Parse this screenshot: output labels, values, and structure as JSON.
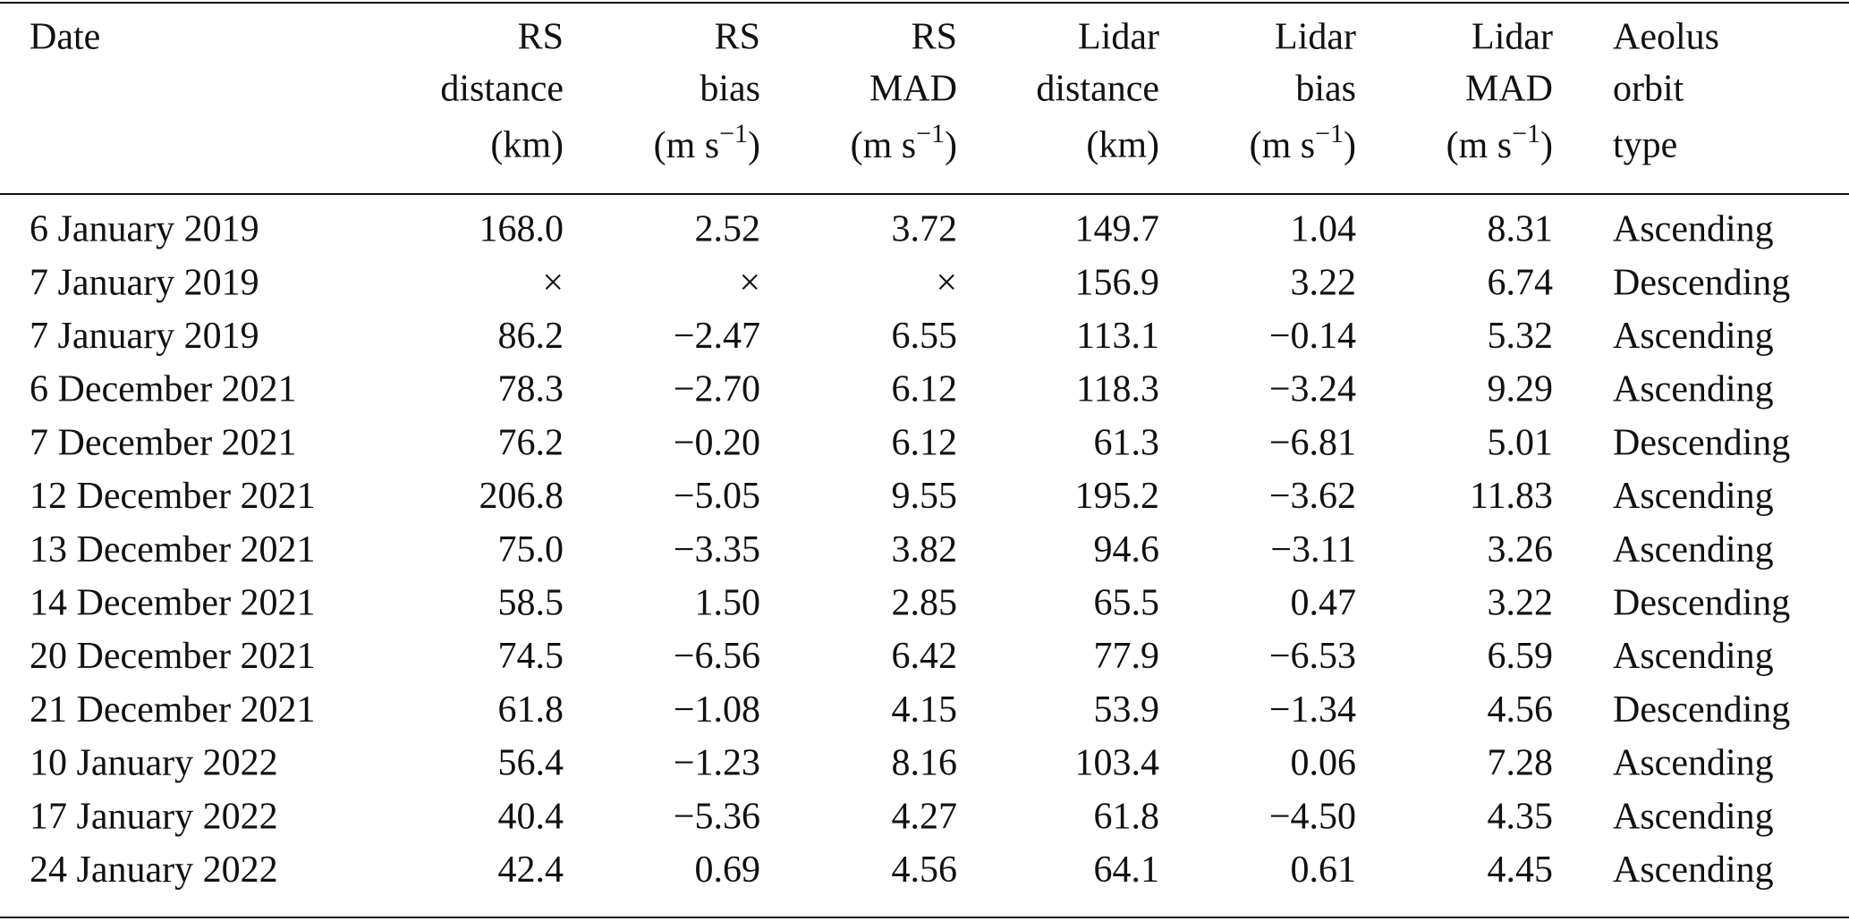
{
  "table": {
    "header": [
      {
        "lines": [
          "Date"
        ]
      },
      {
        "lines": [
          "RS",
          "distance",
          "(km)"
        ]
      },
      {
        "lines": [
          "RS",
          "bias",
          {
            "text": "(m s",
            "sup": "−1",
            "after": ")"
          }
        ]
      },
      {
        "lines": [
          "RS",
          "MAD",
          {
            "text": "(m s",
            "sup": "−1",
            "after": ")"
          }
        ]
      },
      {
        "lines": [
          "Lidar",
          "distance",
          "(km)"
        ]
      },
      {
        "lines": [
          "Lidar",
          "bias",
          {
            "text": "(m s",
            "sup": "−1",
            "after": ")"
          }
        ]
      },
      {
        "lines": [
          "Lidar",
          "MAD",
          {
            "text": "(m s",
            "sup": "−1",
            "after": ")"
          }
        ]
      },
      {
        "lines": [
          "Aeolus",
          "orbit",
          "type"
        ]
      }
    ],
    "rows": [
      [
        "6 January 2019",
        "168.0",
        "2.52",
        "3.72",
        "149.7",
        "1.04",
        "8.31",
        "Ascending"
      ],
      [
        "7 January 2019",
        "×",
        "×",
        "×",
        "156.9",
        "3.22",
        "6.74",
        "Descending"
      ],
      [
        "7 January 2019",
        "86.2",
        "−2.47",
        "6.55",
        "113.1",
        "−0.14",
        "5.32",
        "Ascending"
      ],
      [
        "6 December 2021",
        "78.3",
        "−2.70",
        "6.12",
        "118.3",
        "−3.24",
        "9.29",
        "Ascending"
      ],
      [
        "7 December 2021",
        "76.2",
        "−0.20",
        "6.12",
        "61.3",
        "−6.81",
        "5.01",
        "Descending"
      ],
      [
        "12 December 2021",
        "206.8",
        "−5.05",
        "9.55",
        "195.2",
        "−3.62",
        "11.83",
        "Ascending"
      ],
      [
        "13 December 2021",
        "75.0",
        "−3.35",
        "3.82",
        "94.6",
        "−3.11",
        "3.26",
        "Ascending"
      ],
      [
        "14 December 2021",
        "58.5",
        "1.50",
        "2.85",
        "65.5",
        "0.47",
        "3.22",
        "Descending"
      ],
      [
        "20 December 2021",
        "74.5",
        "−6.56",
        "6.42",
        "77.9",
        "−6.53",
        "6.59",
        "Ascending"
      ],
      [
        "21 December 2021",
        "61.8",
        "−1.08",
        "4.15",
        "53.9",
        "−1.34",
        "4.56",
        "Descending"
      ],
      [
        "10 January 2022",
        "56.4",
        "−1.23",
        "8.16",
        "103.4",
        "0.06",
        "7.28",
        "Ascending"
      ],
      [
        "17 January 2022",
        "40.4",
        "−5.36",
        "4.27",
        "61.8",
        "−4.50",
        "4.35",
        "Ascending"
      ],
      [
        "24 January 2022",
        "42.4",
        "0.69",
        "4.56",
        "64.1",
        "0.61",
        "4.45",
        "Ascending"
      ]
    ]
  }
}
